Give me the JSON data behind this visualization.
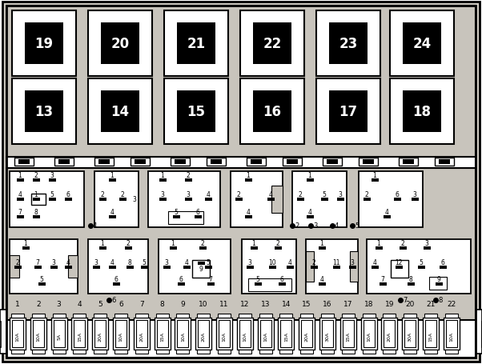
{
  "bg_color": "#d8d4cc",
  "relay_row1": [
    19,
    20,
    21,
    22,
    23,
    24
  ],
  "relay_row2": [
    13,
    14,
    15,
    16,
    17,
    18
  ],
  "fuse_numbers": [
    1,
    2,
    3,
    4,
    5,
    6,
    7,
    8,
    9,
    10,
    11,
    12,
    13,
    14,
    15,
    16,
    17,
    18,
    19,
    20,
    21,
    22
  ],
  "fuse_ratings": [
    "10A",
    "10A",
    "5A",
    "15A",
    "20A",
    "10A",
    "20A",
    "15A",
    "10A",
    "20A",
    "10A",
    "10A",
    "10A",
    "15A",
    "20A",
    "30A",
    "15A",
    "10A",
    "20A",
    "30A",
    "15A",
    "10A"
  ]
}
